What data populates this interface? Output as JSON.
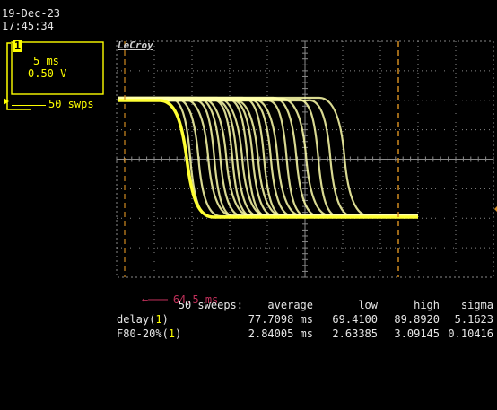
{
  "header": {
    "date": "19-Dec-23",
    "time": "17:45:34"
  },
  "channel": {
    "number": "1",
    "timebase": "5 ms",
    "volts_per_div": "0.50 V",
    "sweeps": "50 swps",
    "color": "#ffff00"
  },
  "brand": "LeCroy",
  "cursor_readout": "64.5 ms",
  "colors": {
    "trace": "#ffffaa",
    "trace_bright": "#ffff33",
    "grid": "#8a8a8a",
    "cursor": "#d08a20",
    "trigger": "#c0305a"
  },
  "stats": {
    "header_prefix": "50 sweeps:",
    "columns": [
      "average",
      "low",
      "high",
      "sigma"
    ],
    "rows": [
      {
        "name": "delay(",
        "channel": "1",
        "suffix": ")",
        "values": [
          "77.7098 ms",
          "69.4100",
          "89.8920",
          "5.1623"
        ]
      },
      {
        "name": "F80-20%(",
        "channel": "1",
        "suffix": ")",
        "values": [
          "2.84005 ms",
          "2.63385",
          "3.09145",
          "0.10416"
        ]
      }
    ]
  },
  "traces": {
    "time_per_div_ms": 5,
    "high_level": "top",
    "delay_ms": [
      69.41,
      70.5,
      71.8,
      72.6,
      73.4,
      74.2,
      75.0,
      75.6,
      76.3,
      77.0,
      77.7,
      78.4,
      79.2,
      80.1,
      81.0,
      82.2,
      83.5,
      84.8,
      86.4,
      88.0,
      89.89
    ]
  }
}
